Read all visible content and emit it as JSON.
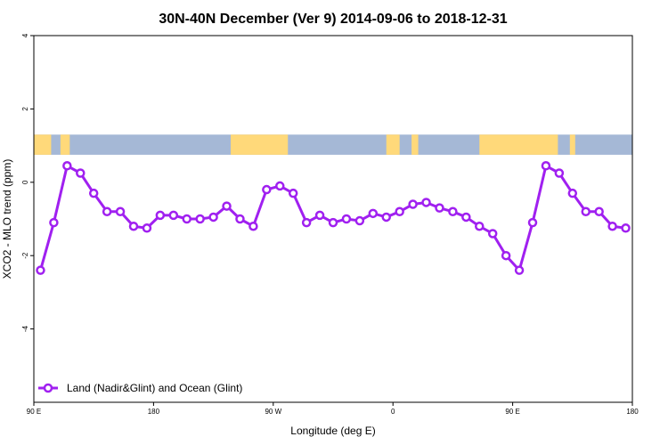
{
  "chart_data": {
    "type": "line",
    "title": "30N-40N December (Ver 9)   2014-09-06 to 2018-12-31",
    "xlabel": "Longitude (deg E)",
    "ylabel": "XCO2 - MLO trend (ppm)",
    "xlim": [
      90,
      540
    ],
    "ylim": [
      -6,
      4
    ],
    "x_ticks": [
      {
        "value": 90,
        "label": "90 E"
      },
      {
        "value": 180,
        "label": "180"
      },
      {
        "value": 270,
        "label": "90 W"
      },
      {
        "value": 360,
        "label": "0"
      },
      {
        "value": 450,
        "label": "90 E"
      },
      {
        "value": 540,
        "label": "180"
      }
    ],
    "y_ticks": [
      {
        "value": 4,
        "label": "4"
      },
      {
        "value": 2,
        "label": "2"
      },
      {
        "value": 0,
        "label": "0"
      },
      {
        "value": -2,
        "label": "-2"
      },
      {
        "value": -4,
        "label": "-4"
      }
    ],
    "series": [
      {
        "name": "Land (Nadir&Glint) and Ocean (Glint)",
        "color": "#a020f0",
        "x": [
          95,
          105,
          115,
          125,
          135,
          145,
          155,
          165,
          175,
          185,
          195,
          205,
          215,
          225,
          235,
          245,
          255,
          265,
          275,
          285,
          295,
          305,
          315,
          325,
          335,
          345,
          355,
          365,
          375,
          385,
          395,
          405,
          415,
          425,
          435,
          445,
          455,
          465,
          475,
          485,
          495,
          505,
          515,
          525,
          535
        ],
        "y": [
          -2.4,
          -1.1,
          0.45,
          0.25,
          -0.3,
          -0.8,
          -0.8,
          -1.2,
          -1.25,
          -0.9,
          -0.9,
          -1.0,
          -1.0,
          -0.95,
          -0.65,
          -1.0,
          -1.2,
          -0.2,
          -0.1,
          -0.3,
          -1.1,
          -0.9,
          -1.1,
          -1.0,
          -1.05,
          -0.85,
          -0.95,
          -0.8,
          -0.6,
          -0.55,
          -0.7,
          -0.8,
          -0.95,
          -1.2,
          -1.4,
          -2.0,
          -2.4,
          -1.1,
          0.45,
          0.25,
          -0.3,
          -0.8,
          -0.8,
          -1.2,
          -1.25
        ]
      }
    ],
    "map_strip": {
      "lat_range": "30N-40N",
      "y_range": [
        0.75,
        1.3
      ],
      "ocean_color": "#a5b8d6",
      "land_color": "#ffd97a",
      "land_segments": [
        [
          90,
          103
        ],
        [
          110,
          117
        ],
        [
          238,
          281
        ],
        [
          355,
          365
        ],
        [
          374,
          379
        ],
        [
          425,
          484
        ],
        [
          493,
          497
        ]
      ]
    },
    "legend": {
      "position": "bottom-left",
      "label": "Land (Nadir&Glint) and Ocean (Glint)"
    },
    "grid": false
  }
}
